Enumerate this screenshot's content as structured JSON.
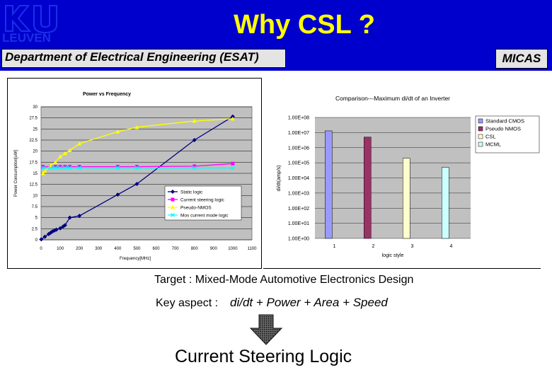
{
  "header": {
    "logo_text": "LEUVEN",
    "title": "Why  CSL ?",
    "department": "Department of Electrical Engineering (ESAT)",
    "group": "MICAS"
  },
  "colors": {
    "header_bg": "#0000cc",
    "title": "#ffff00",
    "plot_bg_gray": "#c0c0c0",
    "static": "#000080",
    "current_steering": "#ff00ff",
    "pseudo_nmos": "#ffff00",
    "mcml": "#00ffff",
    "bar_cmos": "#9999ff",
    "bar_pnmos": "#993366",
    "bar_csl": "#ffffcc",
    "bar_mcml": "#ccffff"
  },
  "chart_data": [
    {
      "type": "line",
      "title": "Power vs Frequency",
      "xlabel": "Frequency[MHz]",
      "ylabel": "Power Consumption[uW]",
      "xlim": [
        0,
        1100
      ],
      "ylim": [
        0,
        30
      ],
      "x_ticks": [
        "0",
        "100",
        "200",
        "300",
        "400",
        "500",
        "600",
        "700",
        "800",
        "900",
        "1000",
        "1100"
      ],
      "y_ticks": [
        "0",
        "2.5",
        "5",
        "7.5",
        "10",
        "12.5",
        "15",
        "17.5",
        "20",
        "22.5",
        "25",
        "27.5",
        "30"
      ],
      "legend_position": "lower-right",
      "series": [
        {
          "name": "Static logic",
          "color": "#000080",
          "marker": "diamond",
          "points": [
            [
              1,
              0.1
            ],
            [
              20,
              0.7
            ],
            [
              40,
              1.3
            ],
            [
              50,
              1.6
            ],
            [
              60,
              1.9
            ],
            [
              70,
              2.1
            ],
            [
              80,
              2.3
            ],
            [
              100,
              2.6
            ],
            [
              115,
              3.0
            ],
            [
              125,
              3.3
            ],
            [
              150,
              5.0
            ],
            [
              200,
              5.4
            ],
            [
              400,
              10.2
            ],
            [
              500,
              12.6
            ],
            [
              800,
              22.5
            ],
            [
              1000,
              27.8
            ]
          ]
        },
        {
          "name": "Current steering logic",
          "color": "#ff00ff",
          "marker": "square",
          "points": [
            [
              10,
              16.5
            ],
            [
              50,
              16.5
            ],
            [
              75,
              16.5
            ],
            [
              100,
              16.5
            ],
            [
              125,
              16.5
            ],
            [
              150,
              16.5
            ],
            [
              200,
              16.5
            ],
            [
              400,
              16.5
            ],
            [
              500,
              16.5
            ],
            [
              800,
              16.6
            ],
            [
              1000,
              17.2
            ]
          ]
        },
        {
          "name": "Pseudo-NMOS",
          "color": "#ffff00",
          "marker": "triangle",
          "points": [
            [
              10,
              15.0
            ],
            [
              20,
              15.5
            ],
            [
              50,
              16.8
            ],
            [
              75,
              17.5
            ],
            [
              100,
              18.8
            ],
            [
              125,
              19.5
            ],
            [
              150,
              20.2
            ],
            [
              200,
              21.7
            ],
            [
              400,
              24.4
            ],
            [
              500,
              25.4
            ],
            [
              800,
              26.8
            ],
            [
              1000,
              27.3
            ]
          ]
        },
        {
          "name": "Mos current mode logic",
          "color": "#00ffff",
          "marker": "x",
          "points": [
            [
              10,
              16.2
            ],
            [
              50,
              16.2
            ],
            [
              75,
              16.2
            ],
            [
              100,
              16.2
            ],
            [
              125,
              16.2
            ],
            [
              150,
              16.2
            ],
            [
              200,
              16.2
            ],
            [
              400,
              16.2
            ],
            [
              500,
              16.2
            ],
            [
              800,
              16.2
            ],
            [
              1000,
              16.2
            ]
          ]
        }
      ]
    },
    {
      "type": "bar",
      "title": "Comparison---Maximum di/dt of an Inverter",
      "xlabel": "logic style",
      "ylabel": "di/dt(amp/s)",
      "y_scale": "log",
      "y_ticks": [
        "1.00E+00",
        "1.00E+01",
        "1.00E+02",
        "1.00E+03",
        "1.00E+04",
        "1.00E+05",
        "1.00E+06",
        "1.00E+07",
        "1.00E+08"
      ],
      "categories": [
        "1",
        "2",
        "3",
        "4"
      ],
      "series": [
        {
          "name": "Standard CMOS",
          "color": "#9999ff",
          "category": "1",
          "value": 13000000.0
        },
        {
          "name": "Pseudo NMOS",
          "color": "#993366",
          "category": "2",
          "value": 5000000.0
        },
        {
          "name": "CSL",
          "color": "#ffffcc",
          "category": "3",
          "value": 200000.0
        },
        {
          "name": "MCML",
          "color": "#ccffff",
          "category": "4",
          "value": 50000.0
        }
      ]
    }
  ],
  "bullets": {
    "target": "Target  : Mixed-Mode Automotive Electronics Design",
    "key_label": "Key aspect  :",
    "key_value": "di/dt + Power + Area + Speed",
    "conclusion": "Current Steering Logic"
  }
}
